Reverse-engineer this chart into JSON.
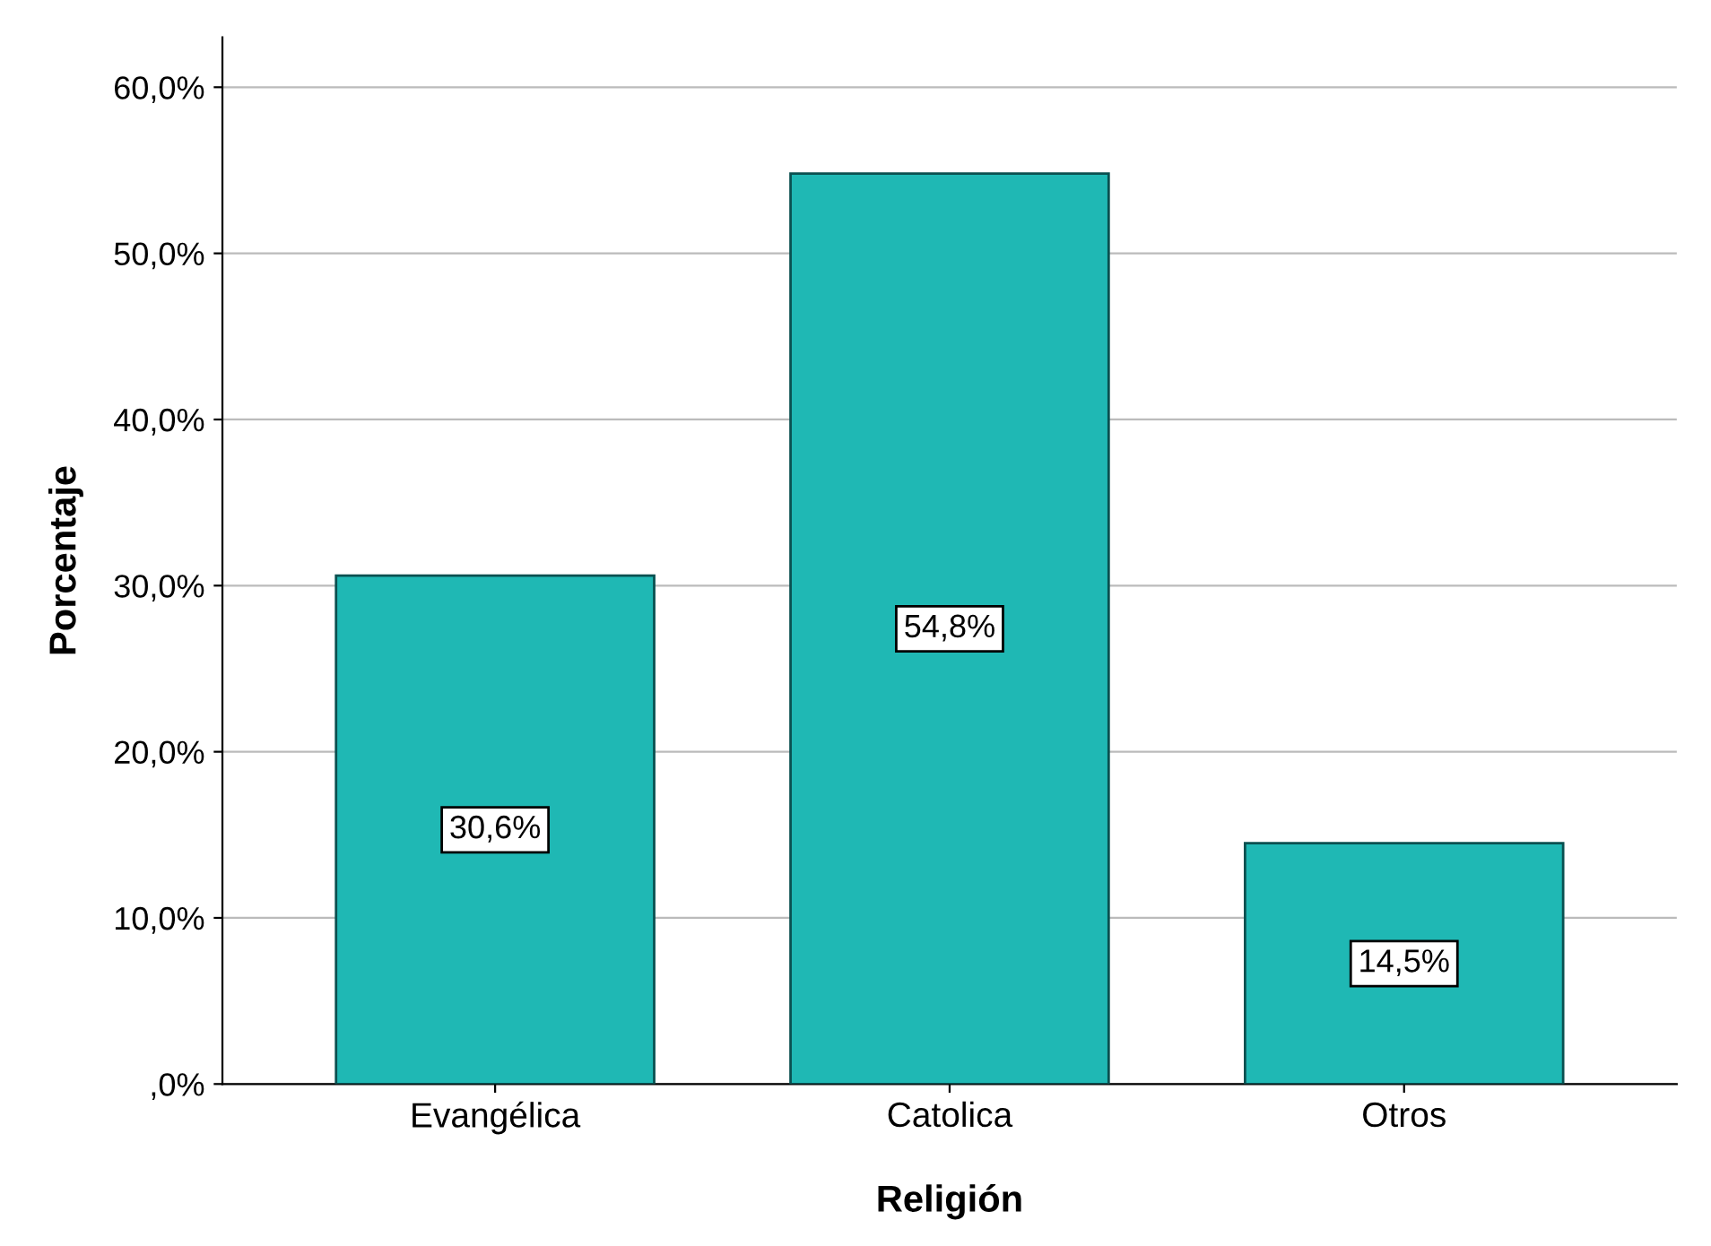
{
  "chart_data": {
    "type": "bar",
    "xlabel": "Religión",
    "ylabel": "Porcentaje",
    "categories": [
      "Evangélica",
      "Catolica",
      "Otros"
    ],
    "values": [
      30.6,
      54.8,
      14.5
    ],
    "value_labels": [
      "30,6%",
      "54,8%",
      "14,5%"
    ],
    "color": "#1fb8b4",
    "ylim": [
      0,
      63
    ],
    "yticks": [
      {
        "value": 0,
        "label": ",0%"
      },
      {
        "value": 10,
        "label": "10,0%"
      },
      {
        "value": 20,
        "label": "20,0%"
      },
      {
        "value": 30,
        "label": "30,0%"
      },
      {
        "value": 40,
        "label": "40,0%"
      },
      {
        "value": 50,
        "label": "50,0%"
      },
      {
        "value": 60,
        "label": "60,0%"
      }
    ],
    "grid": "y"
  }
}
